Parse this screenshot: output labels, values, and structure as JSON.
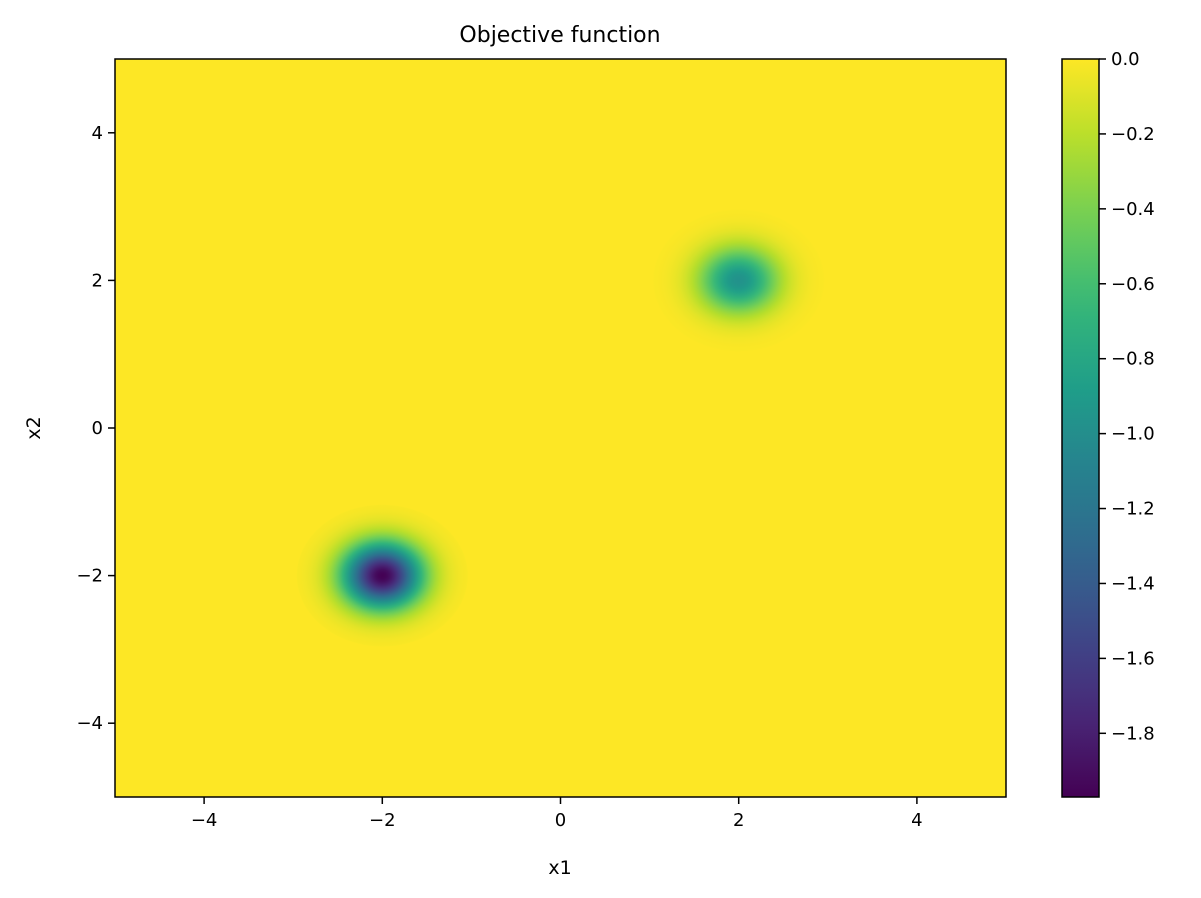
{
  "chart_data": {
    "type": "heatmap",
    "title": "Objective function",
    "xlabel": "x1",
    "ylabel": "x2",
    "xlim": [
      -5,
      5
    ],
    "ylim": [
      -5,
      5
    ],
    "x_ticks": [
      {
        "value": -4,
        "label": "−4"
      },
      {
        "value": -2,
        "label": "−2"
      },
      {
        "value": 0,
        "label": "0"
      },
      {
        "value": 2,
        "label": "2"
      },
      {
        "value": 4,
        "label": "4"
      }
    ],
    "y_ticks": [
      {
        "value": -4,
        "label": "−4"
      },
      {
        "value": -2,
        "label": "−2"
      },
      {
        "value": 0,
        "label": "0"
      },
      {
        "value": 2,
        "label": "2"
      },
      {
        "value": 4,
        "label": "4"
      }
    ],
    "colormap": "viridis",
    "colorbar": {
      "range": [
        -1.97,
        0.0
      ],
      "ticks": [
        {
          "value": 0.0,
          "label": "0.0"
        },
        {
          "value": -0.2,
          "label": "−0.2"
        },
        {
          "value": -0.4,
          "label": "−0.4"
        },
        {
          "value": -0.6,
          "label": "−0.6"
        },
        {
          "value": -0.8,
          "label": "−0.8"
        },
        {
          "value": -1.0,
          "label": "−1.0"
        },
        {
          "value": -1.2,
          "label": "−1.2"
        },
        {
          "value": -1.4,
          "label": "−1.4"
        },
        {
          "value": -1.6,
          "label": "−1.6"
        },
        {
          "value": -1.8,
          "label": "−1.8"
        }
      ]
    },
    "minima": [
      {
        "x": -2,
        "y": -2,
        "value": -1.97,
        "sigma": 0.3
      },
      {
        "x": 2,
        "y": 2,
        "value": -0.97,
        "sigma": 0.3
      }
    ],
    "grid": false
  }
}
